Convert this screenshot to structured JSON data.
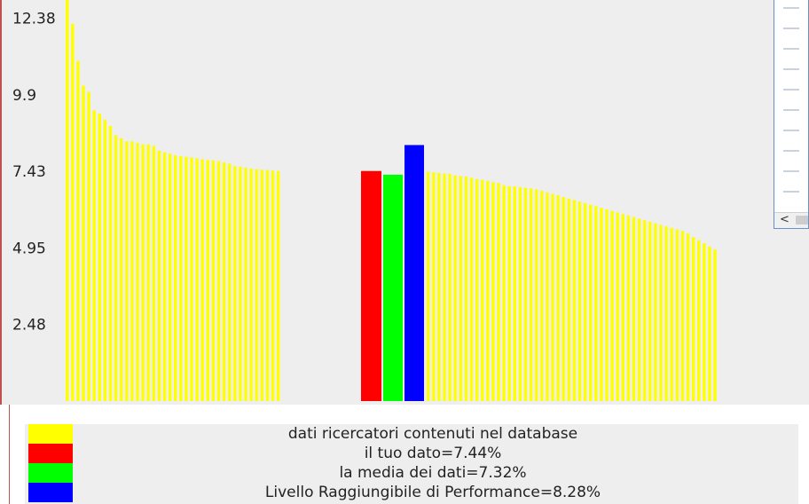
{
  "chart_data": {
    "type": "bar",
    "yticks": [
      "2.48",
      "4.95",
      "7.43",
      "9.9",
      "12.38"
    ],
    "ylim": [
      0,
      13
    ],
    "grid": false,
    "legend_position": "bottom",
    "colors": {
      "database": "#ffff00",
      "tuo": "#ff0000",
      "media": "#00ff00",
      "livello": "#0000ff"
    },
    "highlight": {
      "tuo_dato": 7.44,
      "media": 7.32,
      "livello": 8.28
    },
    "database_values_left": [
      13.5,
      12.2,
      11.0,
      10.2,
      10.0,
      9.4,
      9.3,
      9.1,
      8.9,
      8.6,
      8.5,
      8.4,
      8.4,
      8.35,
      8.3,
      8.3,
      8.25,
      8.1,
      8.05,
      8.0,
      7.95,
      7.92,
      7.9,
      7.88,
      7.85,
      7.82,
      7.8,
      7.78,
      7.76,
      7.72,
      7.68,
      7.6,
      7.58,
      7.55,
      7.52,
      7.5,
      7.48,
      7.47,
      7.45,
      7.44
    ],
    "database_values_right": [
      7.42,
      7.4,
      7.38,
      7.36,
      7.35,
      7.3,
      7.28,
      7.26,
      7.22,
      7.18,
      7.15,
      7.12,
      7.08,
      7.05,
      6.98,
      6.95,
      6.94,
      6.92,
      6.9,
      6.88,
      6.85,
      6.8,
      6.75,
      6.7,
      6.66,
      6.6,
      6.55,
      6.5,
      6.45,
      6.4,
      6.35,
      6.3,
      6.25,
      6.2,
      6.15,
      6.1,
      6.05,
      6.0,
      5.95,
      5.9,
      5.85,
      5.8,
      5.75,
      5.7,
      5.65,
      5.6,
      5.55,
      5.5,
      5.42,
      5.3,
      5.2,
      5.1,
      5.0,
      4.9
    ],
    "legend": [
      {
        "key": "database",
        "label": "dati ricercatori contenuti nel database"
      },
      {
        "key": "tuo",
        "label": "il tuo dato=7.44%"
      },
      {
        "key": "media",
        "label": "la media dei dati=7.32%"
      },
      {
        "key": "livello",
        "label": "Livello Raggiungibile di Performance=8.28%"
      }
    ]
  },
  "mini_window": {
    "scroll_arrow": "<"
  }
}
